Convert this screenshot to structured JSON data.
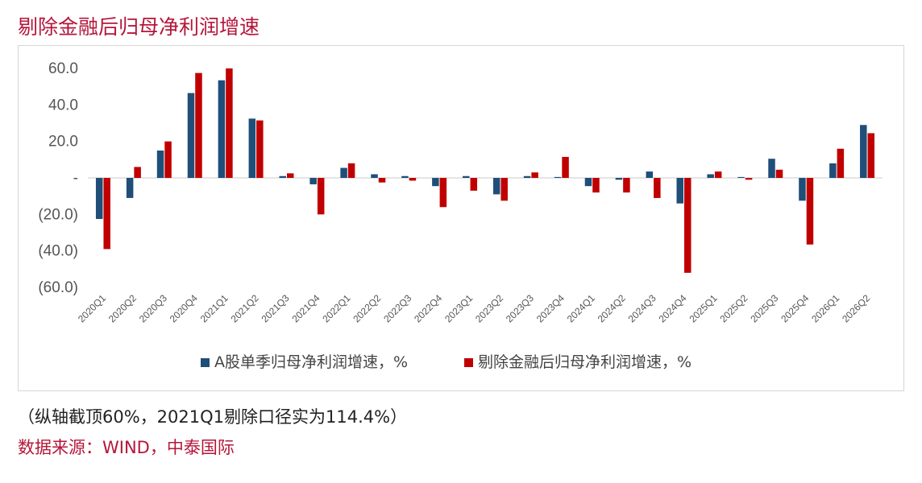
{
  "header": {
    "title": "剔除金融后归母净利润增速"
  },
  "footer": {
    "note": "（纵轴截顶60%，2021Q1剔除口径实为114.4%）",
    "source": "数据来源：WIND，中泰国际"
  },
  "colors": {
    "series1": "#1f4e79",
    "series2": "#c00000",
    "accent": "#b5163a"
  },
  "chart_data": {
    "type": "bar",
    "title": "",
    "xlabel": "",
    "ylabel": "",
    "ylim": [
      -60,
      60
    ],
    "yticks": [
      60,
      40,
      20,
      0,
      -20,
      -40,
      -60
    ],
    "ytick_labels": [
      "60.0",
      "40.0",
      "20.0",
      "-",
      "(20.0)",
      "(40.0)",
      "(60.0)"
    ],
    "grid": false,
    "legend_position": "bottom",
    "categories": [
      "2020Q1",
      "2020Q2",
      "2020Q3",
      "2020Q4",
      "2021Q1",
      "2021Q2",
      "2021Q3",
      "2021Q4",
      "2022Q1",
      "2022Q2",
      "2022Q3",
      "2022Q4",
      "2023Q1",
      "2023Q2",
      "2023Q3",
      "2023Q4",
      "2024Q1",
      "2024Q2",
      "2024Q3",
      "2024Q4",
      "2025Q1",
      "2025Q2",
      "2025Q3",
      "2025Q4",
      "2026Q1",
      "2026Q2"
    ],
    "series": [
      {
        "name": "A股单季归母净利润增速，%",
        "values": [
          -22.5,
          -11.0,
          15.0,
          46.5,
          53.5,
          32.5,
          1.0,
          -3.5,
          5.5,
          2.0,
          1.0,
          -4.5,
          1.0,
          -9.0,
          1.0,
          0.5,
          -4.5,
          -1.0,
          3.5,
          -14.0,
          2.0,
          0.5,
          10.5,
          -12.5,
          8.0,
          29.0
        ]
      },
      {
        "name": "剔除金融后归母净利润增速，%",
        "values": [
          -39.0,
          6.0,
          20.0,
          57.5,
          60.0,
          31.5,
          2.5,
          -20.0,
          8.0,
          -2.5,
          -1.5,
          -16.0,
          -7.0,
          -12.5,
          3.0,
          11.5,
          -8.0,
          -8.0,
          -11.0,
          -52.0,
          3.5,
          -1.0,
          4.5,
          -36.5,
          16.0,
          24.5
        ]
      }
    ]
  }
}
